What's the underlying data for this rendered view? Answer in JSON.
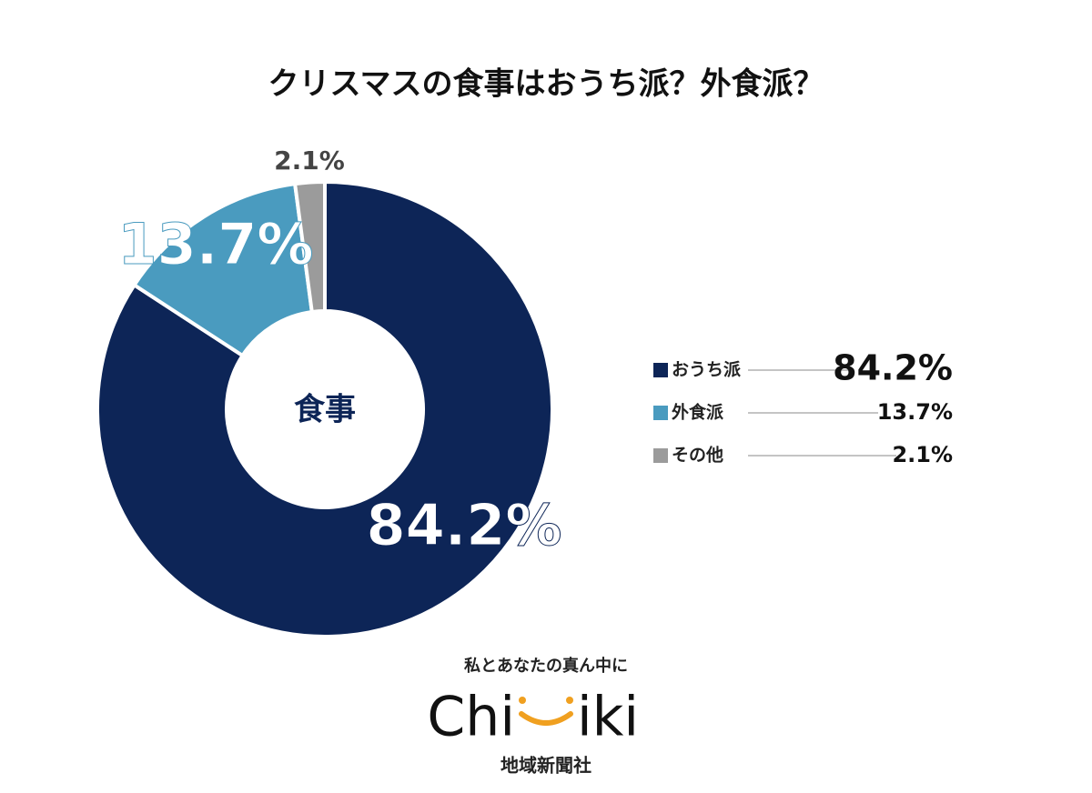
{
  "chart_data": {
    "type": "donut",
    "title": "クリスマスの食事はおうち派？外食派？",
    "center_label": "食事",
    "categories": [
      "おうち派",
      "外食派",
      "その他"
    ],
    "values": [
      84.2,
      13.7,
      2.1
    ],
    "value_labels": [
      "84.2%",
      "13.7%",
      "2.1%"
    ],
    "colors": [
      "#0d2557",
      "#4a9bbf",
      "#9b9b9b"
    ],
    "legend": "right"
  },
  "branding": {
    "tagline": "私とあなたの真ん中に",
    "logo_left": "Chi",
    "logo_right": "iki",
    "company": "地域新聞社"
  }
}
